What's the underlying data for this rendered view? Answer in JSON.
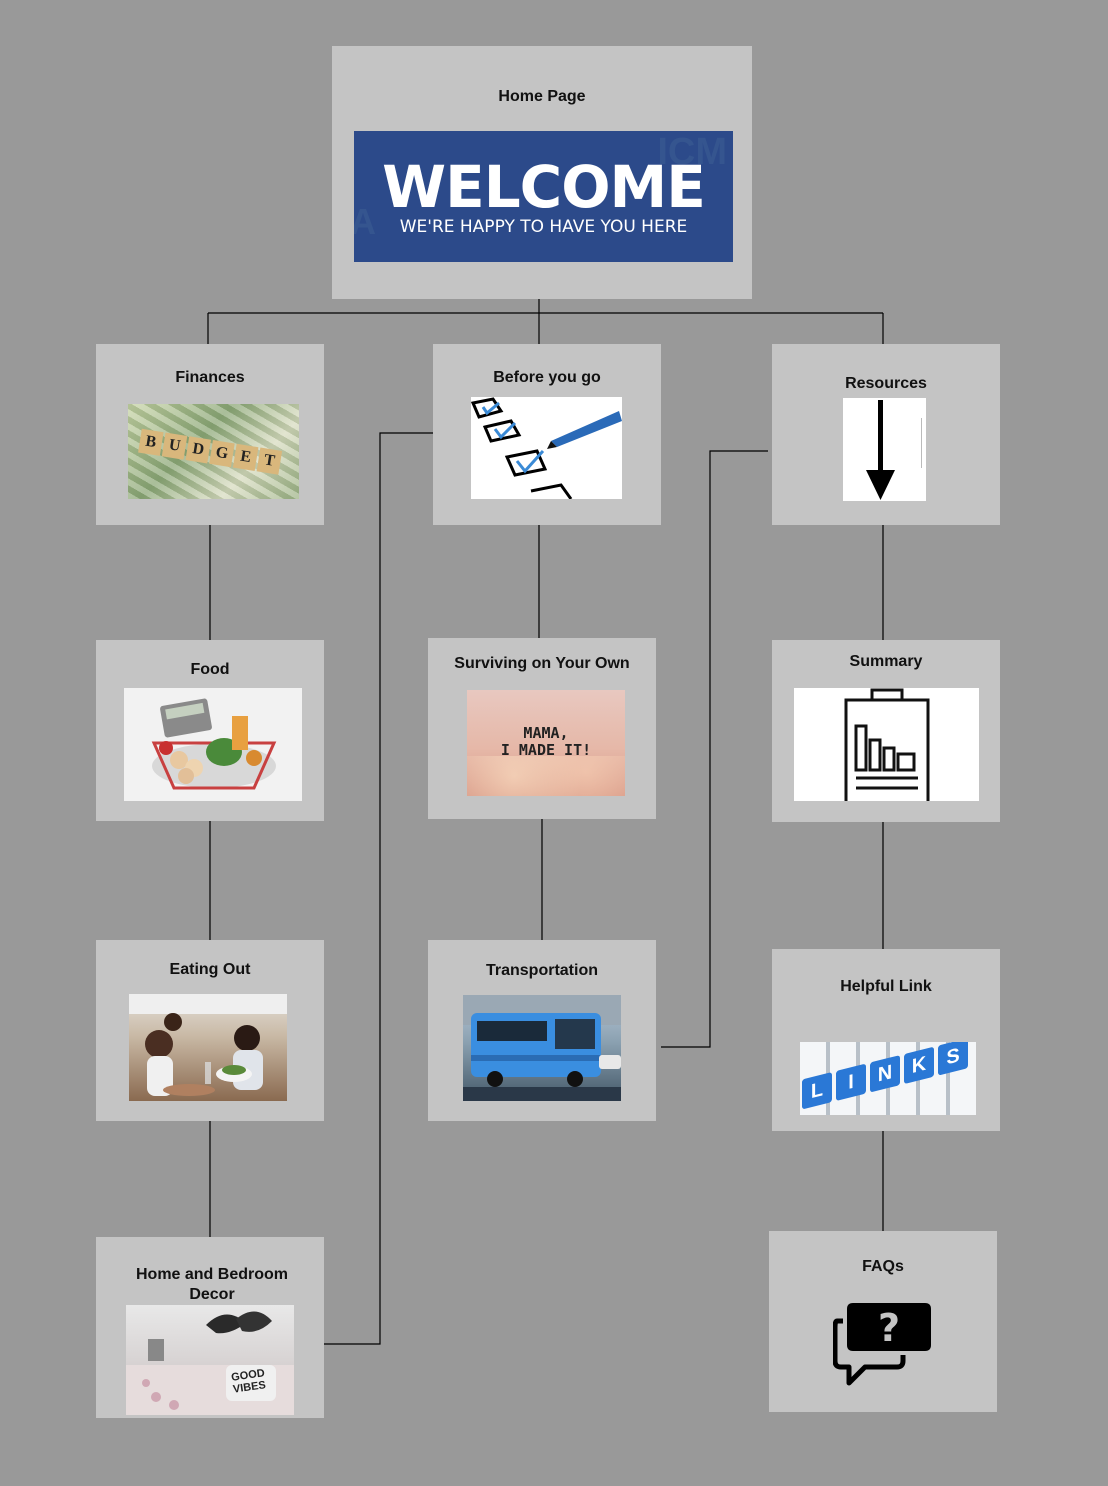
{
  "nodes": {
    "home": {
      "title": "Home Page",
      "banner_big": "WELCOME",
      "banner_small": "WE'RE HAPPY TO HAVE YOU HERE"
    },
    "finances": {
      "title": "Finances",
      "tile_letters": [
        "B",
        "U",
        "D",
        "G",
        "E",
        "T"
      ]
    },
    "before": {
      "title": "Before you go"
    },
    "resources": {
      "title": "Resources"
    },
    "food": {
      "title": "Food"
    },
    "surviving": {
      "title": "Surviving on Your Own",
      "pic_line1": "MAMA,",
      "pic_line2": "I MADE IT!"
    },
    "summary": {
      "title": "Summary"
    },
    "eating": {
      "title": "Eating Out"
    },
    "transport": {
      "title": "Transportation"
    },
    "helpful": {
      "title": "Helpful Link",
      "key_letters": [
        "L",
        "I",
        "N",
        "K",
        "S"
      ]
    },
    "decor": {
      "title": "Home and Bedroom Decor",
      "pillow_text": "GOOD VIBES"
    },
    "faqs": {
      "title": "FAQs"
    }
  },
  "colors": {
    "background": "#999999",
    "node": "#c4c4c4",
    "banner": "#2c4a8a",
    "line": "#000000"
  },
  "icons": [
    "checklist-icon",
    "down-arrow-icon",
    "clipboard-chart-icon",
    "question-speech-bubble-icon",
    "links-keyboard-icon"
  ]
}
